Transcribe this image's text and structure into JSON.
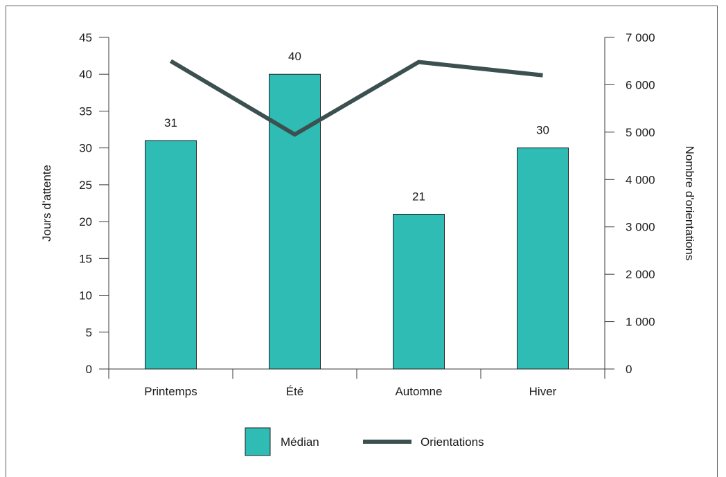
{
  "chart_data": {
    "type": "bar",
    "categories": [
      "Printemps",
      "Été",
      "Automne",
      "Hiver"
    ],
    "series": [
      {
        "name": "Médian",
        "type": "bar",
        "axis": "left",
        "values": [
          31,
          40,
          21,
          30
        ],
        "color": "#2ebcb4"
      },
      {
        "name": "Orientations",
        "type": "line",
        "axis": "right",
        "values": [
          6500,
          4950,
          6480,
          6200
        ],
        "color": "#3c5050"
      }
    ],
    "data_labels": [
      "31",
      "40",
      "21",
      "30"
    ],
    "left_axis": {
      "label": "Jours d'attente",
      "range": [
        0,
        45
      ],
      "ticks": [
        0,
        5,
        10,
        15,
        20,
        25,
        30,
        35,
        40,
        45
      ],
      "tick_labels": [
        "0",
        "5",
        "10",
        "15",
        "20",
        "25",
        "30",
        "35",
        "40",
        "45"
      ]
    },
    "right_axis": {
      "label": "Nombre d'orientations",
      "range": [
        0,
        7000
      ],
      "ticks": [
        0,
        1000,
        2000,
        3000,
        4000,
        5000,
        6000,
        7000
      ],
      "tick_labels": [
        "0",
        "1 000",
        "2 000",
        "3 000",
        "4 000",
        "5 000",
        "6 000",
        "7 000"
      ]
    },
    "legend": {
      "position": "bottom",
      "items": [
        "Médian",
        "Orientations"
      ]
    },
    "grid": false
  }
}
